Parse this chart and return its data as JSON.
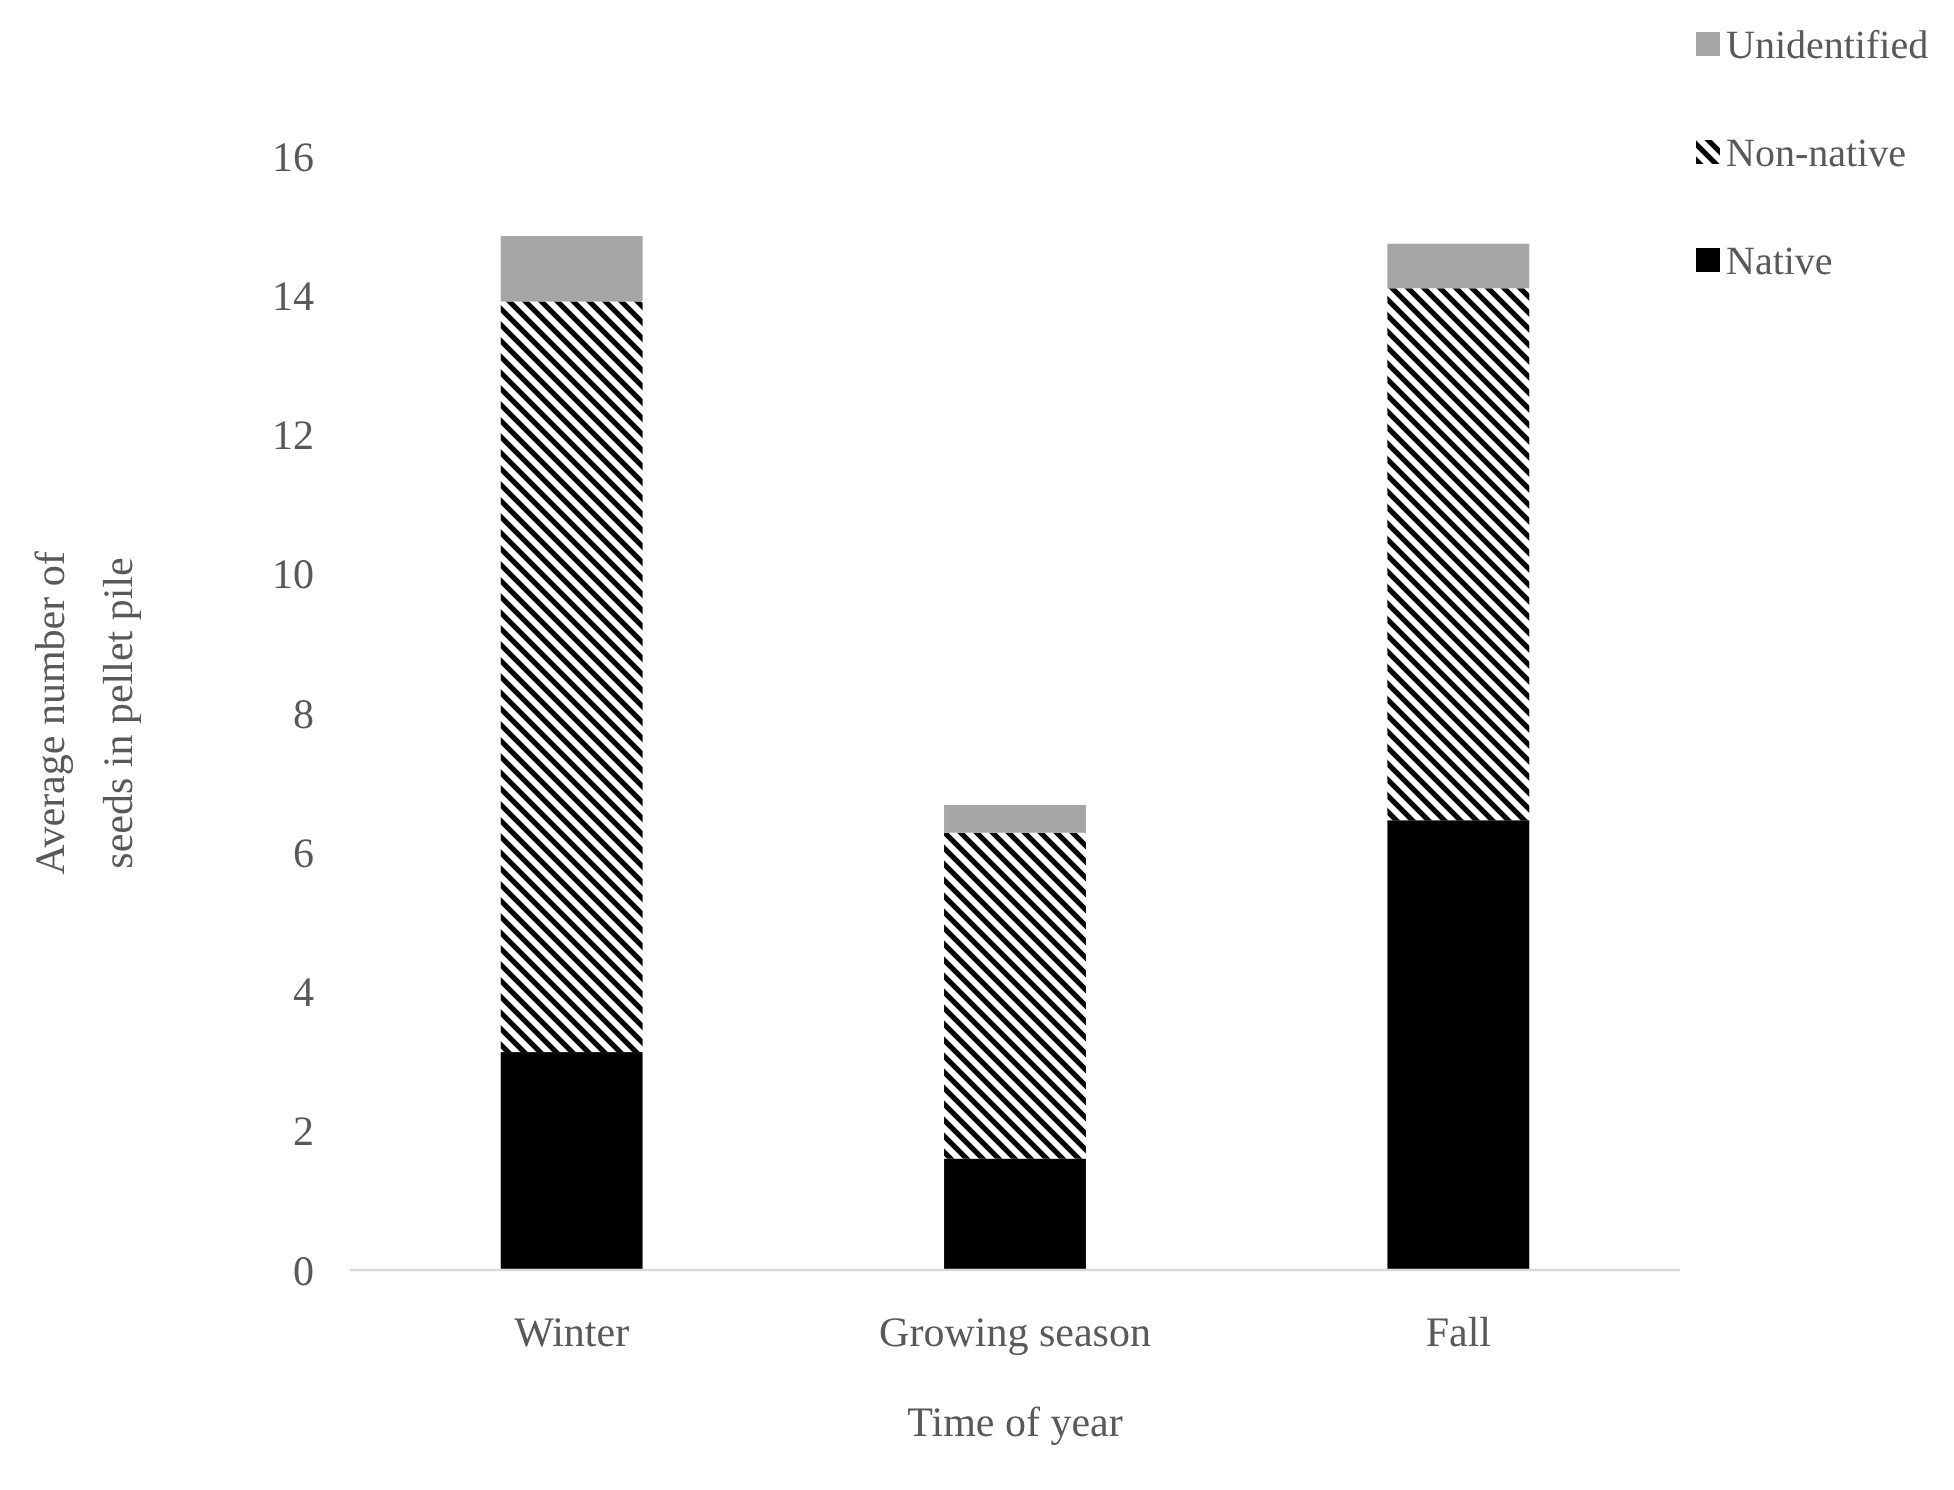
{
  "chart_data": {
    "type": "bar",
    "stacked": true,
    "xlabel": "Time of year",
    "ylabel": "Average number of seeds in pellet pile",
    "categories": [
      "Winter",
      "Growing season",
      "Fall"
    ],
    "series": [
      {
        "name": "Native",
        "color": "#000000",
        "values": [
          3.13,
          1.6,
          6.46
        ]
      },
      {
        "name": "Non-native",
        "color": "#000000",
        "values": [
          10.78,
          4.68,
          7.64
        ]
      },
      {
        "name": "Unidentified",
        "color": "#a6a6a6",
        "values": [
          0.94,
          0.4,
          0.64
        ]
      }
    ],
    "ylim": [
      0,
      16
    ],
    "yticks": [
      0,
      2,
      4,
      6,
      8,
      10,
      12,
      14,
      16
    ],
    "grid": false,
    "legend": "top right"
  }
}
